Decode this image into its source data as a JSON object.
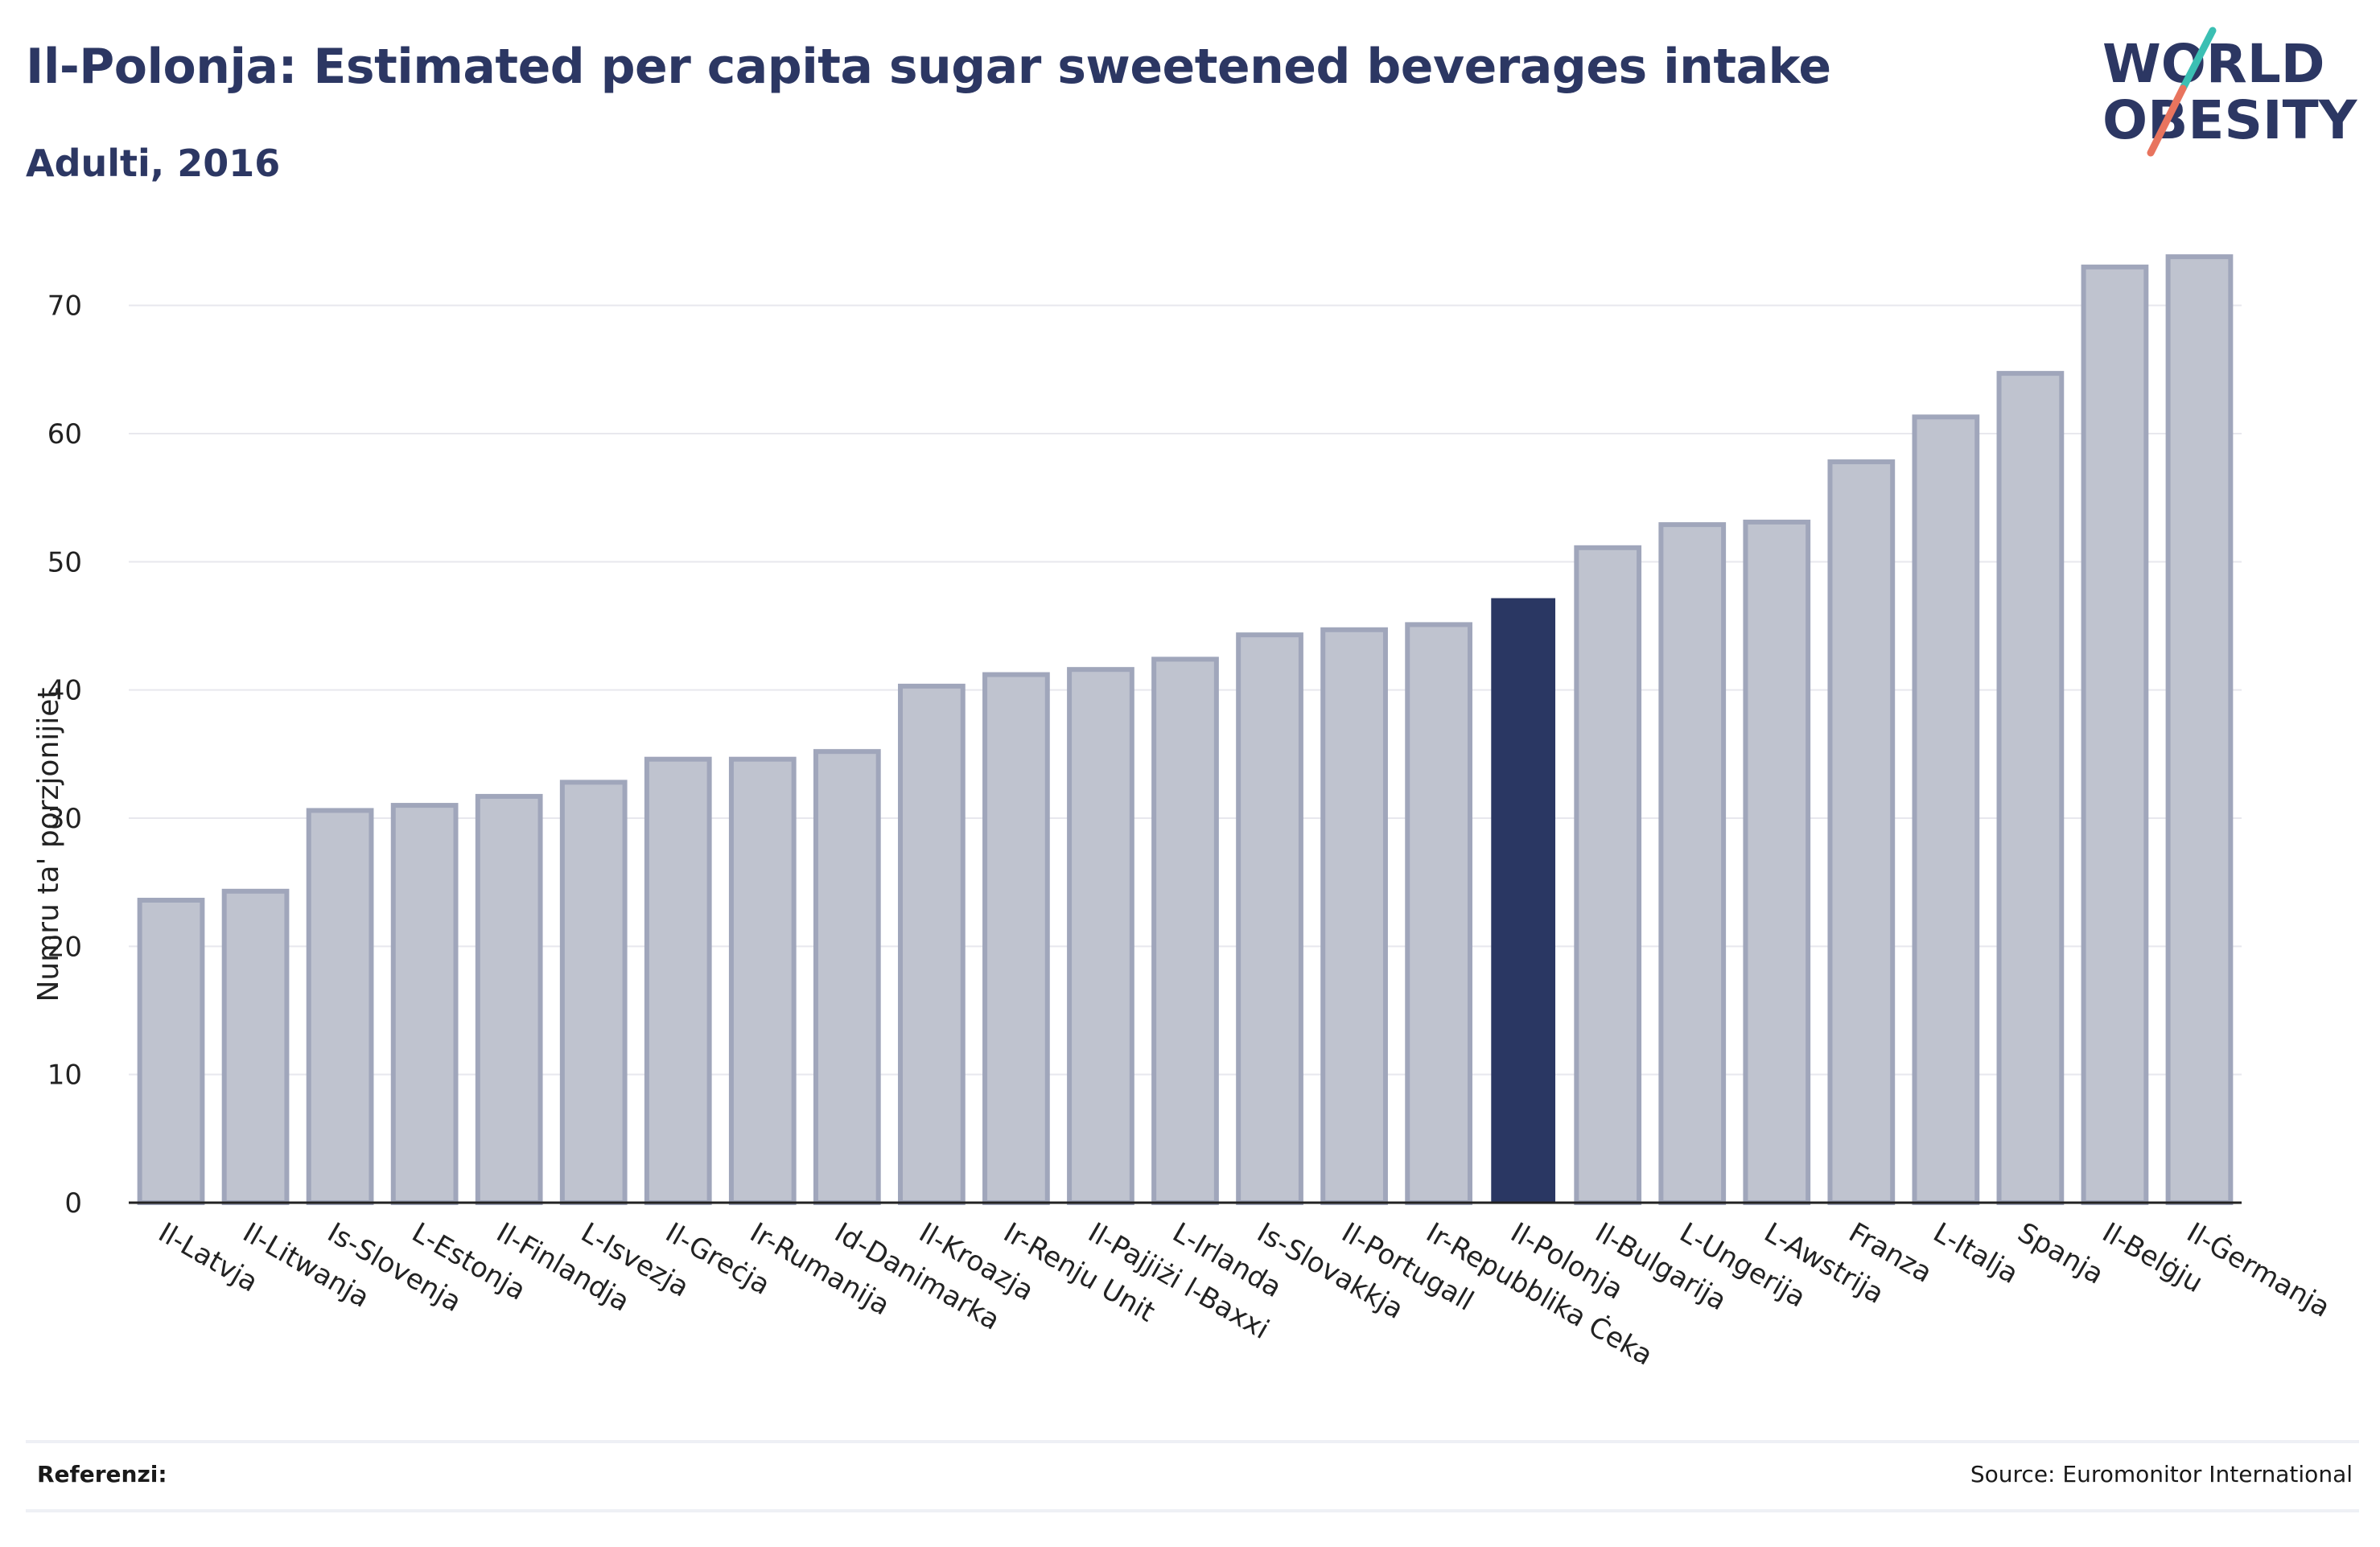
{
  "header": {
    "title": "Il-Polonja: Estimated per capita sugar sweetened beverages intake",
    "subtitle": "Adulti, 2016"
  },
  "logo": {
    "line1": "WORLD",
    "line2": "OBESITY",
    "text_color": "#2c3763",
    "slash_top_color": "#3bbfb3",
    "slash_bottom_color": "#e8745e"
  },
  "footer": {
    "references_label": "Referenzi:",
    "source": "Source: Euromonitor International"
  },
  "colors": {
    "highlight": "#2a3763",
    "bar_fill": "#bfc3cf",
    "bar_stroke": "#a0a6bb",
    "grid": "#e8e8ee",
    "axis": "#222222",
    "title": "#2c3763"
  },
  "chart_data": {
    "type": "bar",
    "title": "Il-Polonja: Estimated per capita sugar sweetened beverages intake",
    "subtitle": "Adulti, 2016",
    "xlabel": "",
    "ylabel": "Numru ta' porzjonijiet",
    "ylim": [
      0,
      75
    ],
    "yticks": [
      0,
      10,
      20,
      30,
      40,
      50,
      60,
      70
    ],
    "grid": true,
    "highlight_category": "Il-Polonja",
    "categories": [
      "Il-Latvja",
      "Il-Litwanja",
      "Is-Slovenja",
      "L-Estonja",
      "Il-Finlandja",
      "L-Isvezja",
      "Il-Greċja",
      "Ir-Rumanija",
      "Id-Danimarka",
      "Il-Kroazja",
      "Ir-Renju Unit",
      "Il-Pajjiżi l-Baxxi",
      "L-Irlanda",
      "Is-Slovakkja",
      "Il-Portugall",
      "Ir-Repubblika Ċeka",
      "Il-Polonja",
      "Il-Bulgarija",
      "L-Ungerija",
      "L-Awstrija",
      "Franza",
      "L-Italja",
      "Spanja",
      "Il-Belġju",
      "Il-Ġermanja"
    ],
    "values": [
      23.6,
      24.3,
      30.6,
      31.0,
      31.7,
      32.8,
      34.6,
      34.6,
      35.2,
      40.3,
      41.2,
      41.6,
      42.4,
      44.3,
      44.7,
      45.1,
      47.1,
      51.1,
      52.9,
      53.1,
      57.8,
      61.3,
      64.7,
      73.0,
      73.8
    ]
  }
}
